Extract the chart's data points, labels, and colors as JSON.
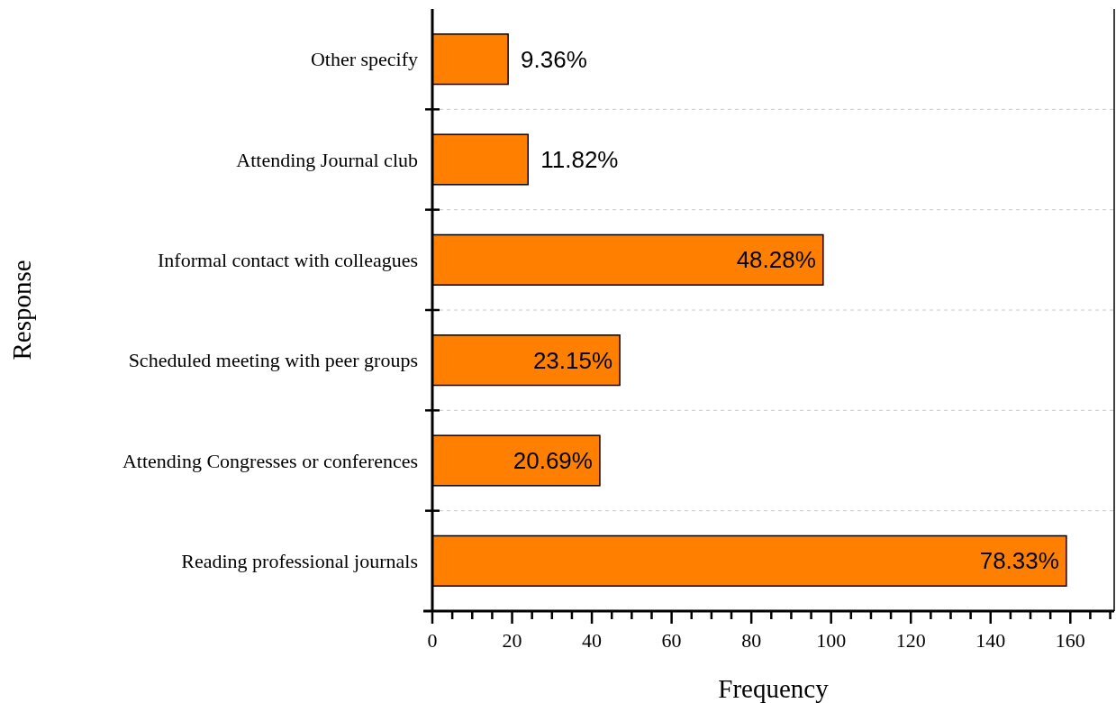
{
  "chart_data": {
    "type": "bar",
    "orientation": "horizontal",
    "xlabel": "Frequency",
    "ylabel": "Response",
    "categories": [
      "Other specify",
      "Attending Journal club",
      "Informal contact with colleagues",
      "Scheduled meeting with peer groups",
      "Attending Congresses or conferences",
      "Reading professional journals"
    ],
    "values": [
      19,
      24,
      98,
      47,
      42,
      159
    ],
    "annotations": [
      {
        "text": "9.36%",
        "x": 19,
        "y": "Other specify"
      },
      {
        "text": "11.82%",
        "x": 24,
        "y": "Attending Journal club"
      },
      {
        "text": "48.28%",
        "x": 98,
        "y": "Informal contact with colleagues"
      },
      {
        "text": "23.15%",
        "x": 47,
        "y": "Scheduled meeting with peer groups"
      },
      {
        "text": "20.69%",
        "x": 42,
        "y": "Attending Congresses or conferences"
      },
      {
        "text": "78.33%",
        "x": 159,
        "y": "Reading professional journals"
      }
    ],
    "color": "#ff8000",
    "xlim": [
      0,
      171
    ],
    "xticks": [
      0,
      {
        "value": 5,
        "label": null
      },
      {
        "value": 10,
        "label": null
      },
      {
        "value": 15,
        "label": null
      },
      20,
      {
        "value": 25,
        "label": null
      },
      {
        "value": 30,
        "label": null
      },
      {
        "value": 35,
        "label": null
      },
      40,
      {
        "value": 45,
        "label": null
      },
      {
        "value": 50,
        "label": null
      },
      {
        "value": 55,
        "label": null
      },
      60,
      {
        "value": 65,
        "label": null
      },
      {
        "value": 70,
        "label": null
      },
      {
        "value": 75,
        "label": null
      },
      80,
      {
        "value": 85,
        "label": null
      },
      {
        "value": 90,
        "label": null
      },
      {
        "value": 95,
        "label": null
      },
      100,
      {
        "value": 105,
        "label": null
      },
      {
        "value": 110,
        "label": null
      },
      {
        "value": 115,
        "label": null
      },
      120,
      {
        "value": 125,
        "label": null
      },
      {
        "value": 130,
        "label": null
      },
      {
        "value": 135,
        "label": null
      },
      140,
      {
        "value": 145,
        "label": null
      },
      {
        "value": 150,
        "label": null
      },
      {
        "value": 155,
        "label": null
      },
      160,
      {
        "value": 165,
        "label": null
      },
      {
        "value": 170,
        "label": null
      }
    ],
    "grid": "y"
  }
}
